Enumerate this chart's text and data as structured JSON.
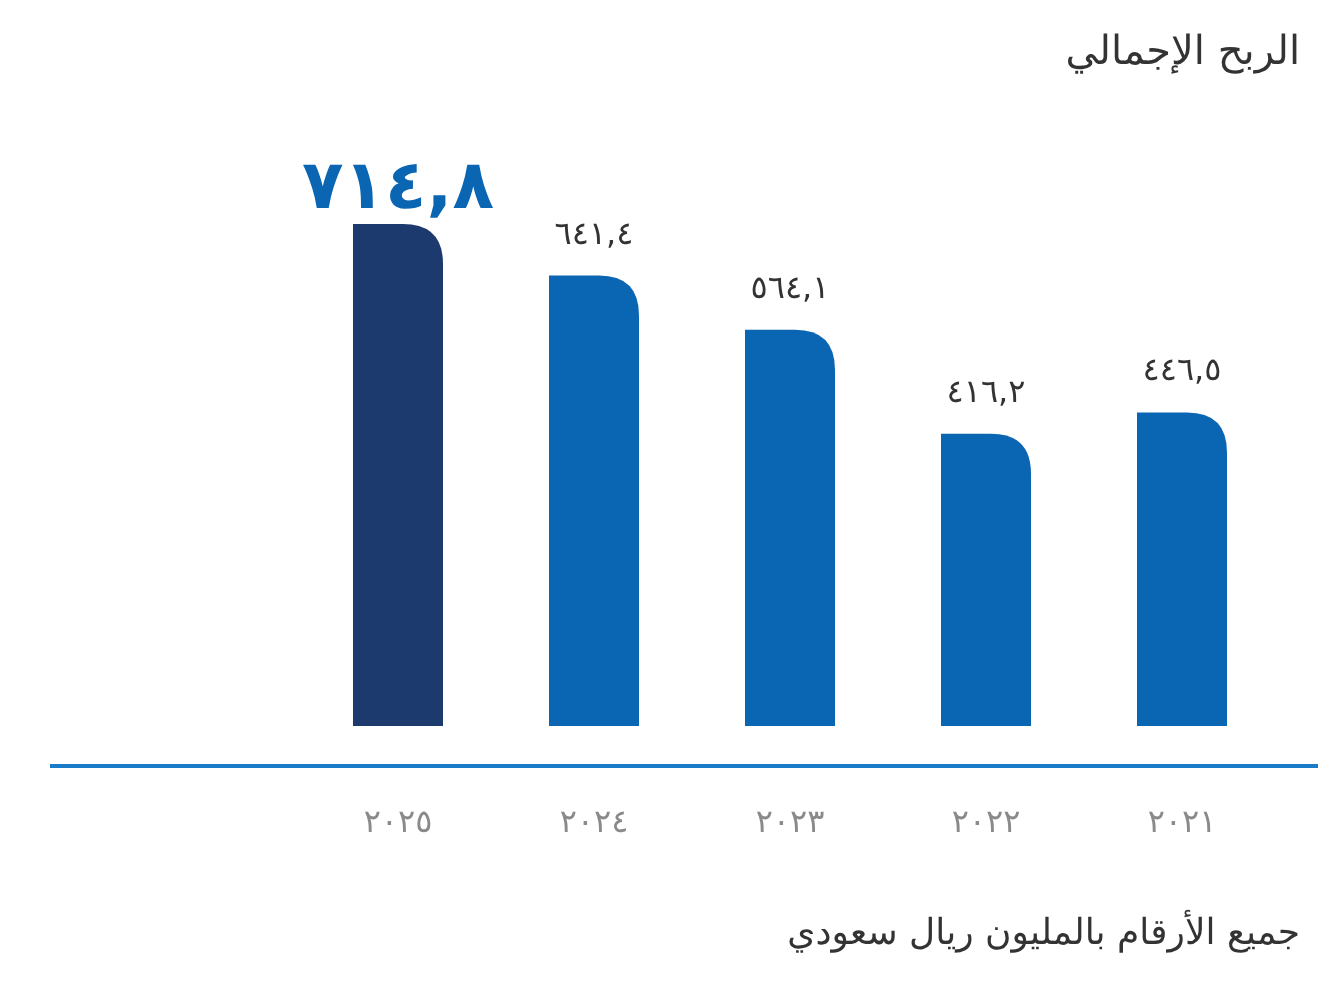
{
  "chart_data": {
    "type": "bar",
    "title": "الربح الإجمالي",
    "categories": [
      "٢٠٢٥",
      "٢٠٢٤",
      "٢٠٢٣",
      "٢٠٢٢",
      "٢٠٢١"
    ],
    "values": [
      714.8,
      641.4,
      564.1,
      416.2,
      446.5
    ],
    "value_labels": [
      "٧١٤,٨",
      "٦٤١,٤",
      "٥٦٤,١",
      "٤١٦,٢",
      "٤٤٦,٥"
    ],
    "colors": [
      "#1c3a6e",
      "#0a66b3",
      "#0a66b3",
      "#0a66b3",
      "#0a66b3"
    ],
    "annotations": [
      "جميع الأرقام بالمليون ريال سعودي"
    ]
  }
}
